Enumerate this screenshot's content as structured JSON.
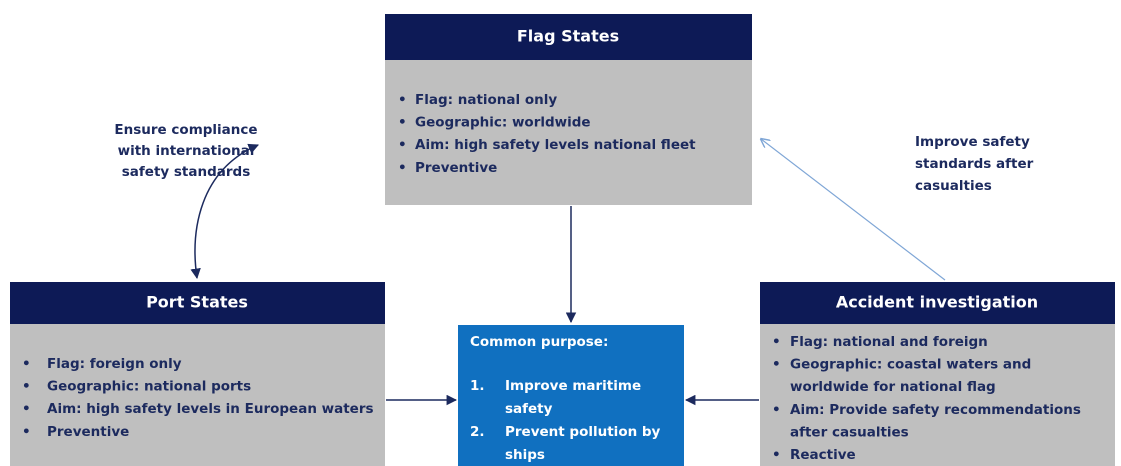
{
  "nodes": [
    {
      "title": "Flag States",
      "items": [
        [
          "Flag: national only"
        ],
        [
          "Geographic: worldwide"
        ],
        [
          "Aim: high safety levels national fleet"
        ],
        [
          "Preventive"
        ]
      ]
    },
    {
      "title": "Port States",
      "items": [
        [
          "Flag: foreign only"
        ],
        [
          "Geographic: national ports"
        ],
        [
          "Aim: high safety levels in European waters"
        ],
        [
          "Preventive"
        ]
      ]
    },
    {
      "title": "Accident investigation",
      "items": [
        [
          "Flag: national and foreign"
        ],
        [
          "Geographic: coastal waters and",
          "worldwide for national flag"
        ],
        [
          "Aim: Provide safety recommendations",
          "after casualties"
        ],
        [
          "Reactive"
        ]
      ]
    }
  ],
  "purpose": {
    "title": "Common purpose:",
    "items": [
      {
        "number": "1.",
        "lines": [
          "Improve maritime",
          "safety"
        ]
      },
      {
        "number": "2.",
        "lines": [
          "Prevent pollution by",
          "ships"
        ]
      }
    ]
  },
  "labels": [
    [
      "Ensure compliance",
      "with international",
      "safety standards"
    ],
    [
      "Improve safety",
      "standards after",
      "casualties"
    ]
  ]
}
